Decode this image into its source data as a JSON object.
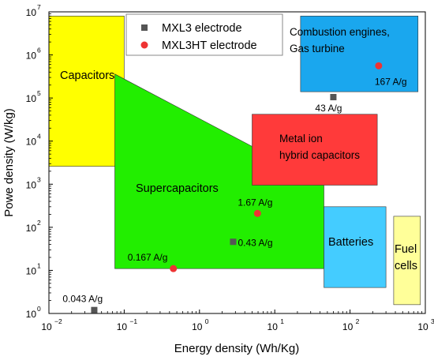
{
  "chart_data": {
    "type": "scatter",
    "xlabel": "Energy density (Wh/Kg)",
    "ylabel": "Powe density (W/kg)",
    "xscale": "log",
    "yscale": "log",
    "xlim": [
      0.01,
      1000
    ],
    "ylim": [
      1,
      10000000
    ],
    "x_ticks": [
      {
        "value": 0.01,
        "base": "10",
        "exp": "−2"
      },
      {
        "value": 0.1,
        "base": "10",
        "exp": "−1"
      },
      {
        "value": 1,
        "base": "10",
        "exp": "0"
      },
      {
        "value": 10,
        "base": "10",
        "exp": "1"
      },
      {
        "value": 100,
        "base": "10",
        "exp": "2"
      },
      {
        "value": 1000,
        "base": "10",
        "exp": "3"
      }
    ],
    "y_ticks": [
      {
        "value": 1,
        "base": "10",
        "exp": "0"
      },
      {
        "value": 10,
        "base": "10",
        "exp": "1"
      },
      {
        "value": 100,
        "base": "10",
        "exp": "2"
      },
      {
        "value": 1000,
        "base": "10",
        "exp": "3"
      },
      {
        "value": 10000,
        "base": "10",
        "exp": "4"
      },
      {
        "value": 100000,
        "base": "10",
        "exp": "5"
      },
      {
        "value": 1000000,
        "base": "10",
        "exp": "6"
      },
      {
        "value": 10000000,
        "base": "10",
        "exp": "7"
      }
    ],
    "grid": false,
    "legend_position": "top-center",
    "regions": [
      {
        "label_lines": [
          "Capacitors"
        ],
        "color": "#ffff00",
        "shape": "rect",
        "x": [
          0.01,
          0.1
        ],
        "y": [
          2600,
          8000000
        ]
      },
      {
        "label_lines": [
          "Supercapacitors"
        ],
        "color": "#22ee00",
        "shape": "polygon",
        "points": [
          [
            0.075,
            360000
          ],
          [
            0.075,
            11
          ],
          [
            45,
            11
          ],
          [
            45,
            1000
          ]
        ]
      },
      {
        "label_lines": [
          "Metal ion",
          "hybrid capacitors"
        ],
        "color": "#ff3a3a",
        "shape": "rect",
        "x": [
          5,
          230
        ],
        "y": [
          950,
          42000
        ]
      },
      {
        "label_lines": [
          "Combustion engines,",
          "Gas turbine"
        ],
        "color": "#1aa7ee",
        "shape": "rect",
        "x": [
          22,
          800
        ],
        "y": [
          140000,
          8000000
        ]
      },
      {
        "label_lines": [
          "Batteries"
        ],
        "color": "#44ccff",
        "shape": "rect",
        "x": [
          45,
          300
        ],
        "y": [
          4,
          300
        ]
      },
      {
        "label_lines": [
          "Fuel",
          "cells"
        ],
        "color": "#ffff99",
        "shape": "rect",
        "x": [
          380,
          860
        ],
        "y": [
          1.6,
          180
        ]
      }
    ],
    "series": [
      {
        "name": "MXL3 electrode",
        "marker": "square",
        "color": "#555555",
        "points": [
          {
            "x": 0.04,
            "y": 1.2,
            "label": "0.043 A/g"
          },
          {
            "x": 2.8,
            "y": 46,
            "label": "0.43 A/g"
          },
          {
            "x": 60,
            "y": 105000,
            "label": "43 A/g"
          }
        ]
      },
      {
        "name": "MXL3HT electrode",
        "marker": "circle",
        "color": "#ee3333",
        "points": [
          {
            "x": 0.45,
            "y": 11,
            "label": "0.167 A/g"
          },
          {
            "x": 5.9,
            "y": 210,
            "label": "1.67 A/g"
          },
          {
            "x": 240,
            "y": 560000,
            "label": "167 A/g"
          }
        ]
      }
    ]
  }
}
